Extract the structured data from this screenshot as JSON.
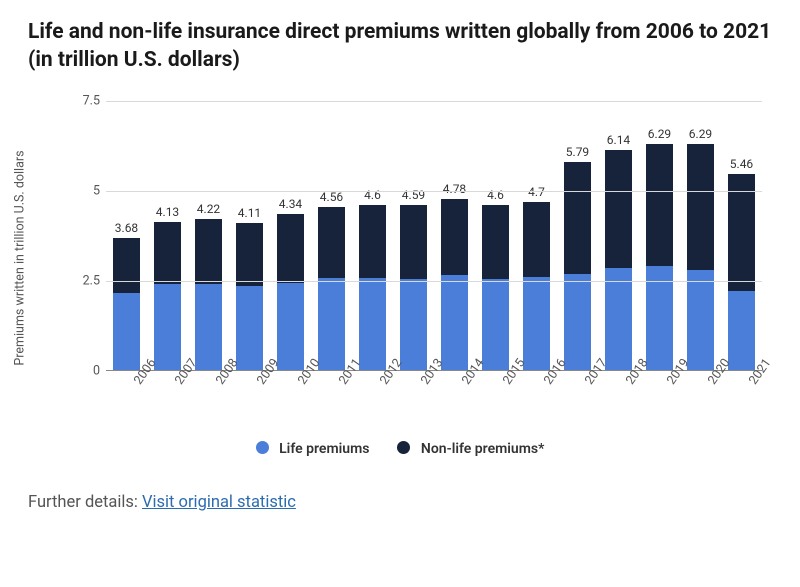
{
  "title": "Life and non-life insurance direct premiums written globally from 2006 to 2021 (in trillion U.S. dollars)",
  "chart": {
    "type": "stacked-bar",
    "ylabel": "Premiums written in trillion\nU.S. dollars",
    "ylim": [
      0,
      7.5
    ],
    "yticks": [
      0,
      2.5,
      5,
      7.5
    ],
    "grid_color": "#d9d9d9",
    "axis_color": "#888888",
    "background_color": "#ffffff",
    "bar_width_ratio": 0.66,
    "label_fontsize": 12.5,
    "totals_fontsize": 12,
    "categories": [
      "2006",
      "2007",
      "2008",
      "2009",
      "2010",
      "2011",
      "2012",
      "2013",
      "2014",
      "2015",
      "2016",
      "2017",
      "2018",
      "2019",
      "2020",
      "2021"
    ],
    "series": [
      {
        "name": "Life premiums",
        "key": "life",
        "color": "#4a7ed9"
      },
      {
        "name": "Non-life premiums*",
        "key": "nonlife",
        "color": "#16233b"
      }
    ],
    "life": [
      2.15,
      2.4,
      2.4,
      2.35,
      2.45,
      2.58,
      2.58,
      2.55,
      2.65,
      2.55,
      2.6,
      2.7,
      2.85,
      2.9,
      2.8,
      2.22
    ],
    "nonlife": [
      1.53,
      1.73,
      1.82,
      1.76,
      1.89,
      1.98,
      2.02,
      2.04,
      2.13,
      2.05,
      2.1,
      3.09,
      3.29,
      3.39,
      3.49,
      3.24
    ],
    "totals": [
      3.68,
      4.13,
      4.22,
      4.11,
      4.34,
      4.56,
      4.6,
      4.59,
      4.78,
      4.6,
      4.7,
      5.79,
      6.14,
      6.29,
      6.29,
      5.46
    ]
  },
  "legend": {
    "items": [
      {
        "label": "Life premiums",
        "color": "#4a7ed9"
      },
      {
        "label": "Non-life premiums*",
        "color": "#16233b"
      }
    ]
  },
  "footer": {
    "prefix": "Further details: ",
    "link_text": "Visit original statistic"
  }
}
